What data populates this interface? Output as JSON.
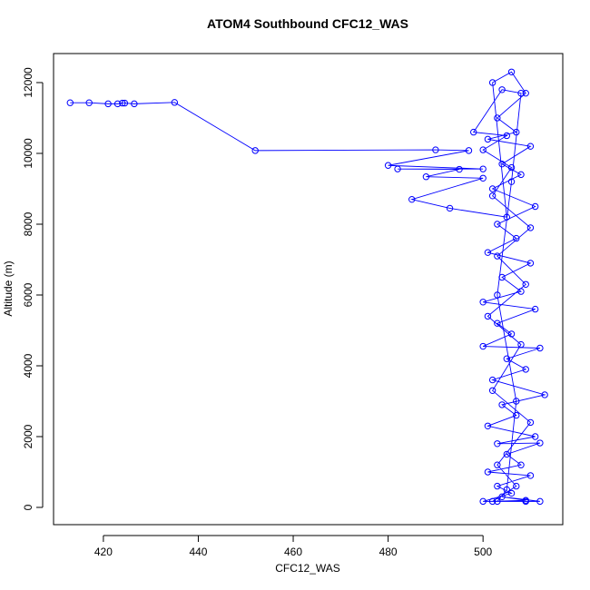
{
  "chart_data": {
    "type": "line",
    "title": "ATOM4 Southbound CFC12_WAS",
    "x_label": "CFC12_WAS",
    "y_label": "Altitude (m)",
    "x": [
      413,
      417,
      421,
      423,
      424,
      424.5,
      426.5,
      435,
      452,
      490,
      497,
      480,
      500,
      482,
      495,
      488,
      500,
      485,
      493,
      505,
      502,
      506,
      509,
      503,
      507,
      501,
      510,
      504,
      508,
      502,
      511,
      503,
      507,
      501,
      510,
      504,
      508,
      500,
      511,
      503,
      506,
      500,
      512,
      505,
      509,
      502,
      513,
      504,
      507,
      501,
      511,
      503,
      512,
      505,
      508,
      501,
      510,
      503,
      506,
      500,
      512,
      504,
      509,
      502,
      507,
      503,
      510,
      502,
      508,
      501,
      509,
      503,
      510,
      502,
      506,
      500,
      505,
      498,
      504,
      508,
      506,
      503,
      507,
      505,
      503,
      509
    ],
    "series": [
      {
        "color": "#0000ff",
        "values": [
          11430,
          11430,
          11400,
          11400,
          11420,
          11420,
          11400,
          11440,
          10080,
          10100,
          10080,
          9660,
          9560,
          9560,
          9550,
          9340,
          9300,
          8700,
          8450,
          8200,
          12000,
          12300,
          11700,
          11000,
          10600,
          10400,
          10200,
          9700,
          9400,
          9000,
          8500,
          8000,
          7600,
          7200,
          6900,
          6500,
          6100,
          5800,
          5600,
          5200,
          4900,
          4550,
          4500,
          4200,
          3900,
          3600,
          3180,
          2900,
          2600,
          2300,
          2000,
          1800,
          1820,
          1500,
          1200,
          1000,
          900,
          600,
          400,
          170,
          170,
          300,
          200,
          170,
          600,
          1200,
          2400,
          3300,
          4600,
          5400,
          6300,
          7100,
          7900,
          8800,
          9600,
          10100,
          10500,
          10600,
          11800,
          11700,
          9200,
          6000,
          3000,
          500,
          170,
          170
        ]
      }
    ],
    "xlim": [
      409.5,
      516.8
    ],
    "ylim": [
      -487,
      12820
    ],
    "xticks": [
      420,
      440,
      460,
      480,
      500
    ],
    "yticks": [
      0,
      2000,
      4000,
      6000,
      8000,
      10000,
      12000
    ]
  }
}
